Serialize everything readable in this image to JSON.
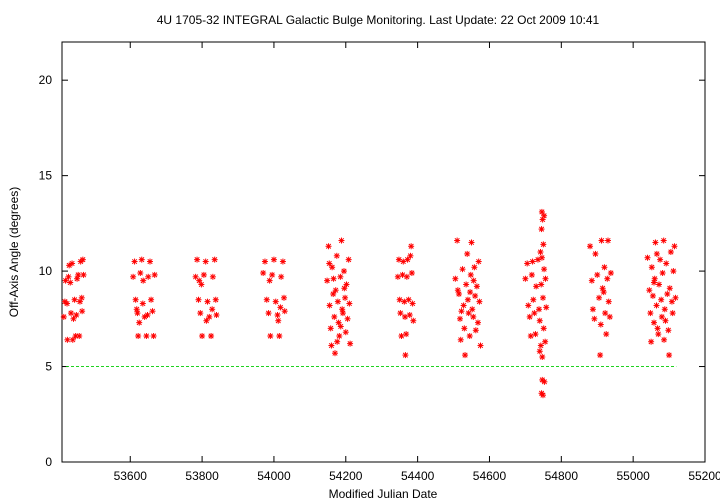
{
  "chart_data": {
    "type": "scatter",
    "title": "4U 1705-32   INTEGRAL Galactic Bulge Monitoring.  Last Update: 22 Oct 2009 10:41",
    "xlabel": "Modified Julian Date",
    "ylabel": "Off-Axis Angle (degrees)",
    "xlim": [
      53410,
      55200
    ],
    "ylim": [
      0,
      22
    ],
    "xticks": [
      53600,
      53800,
      54000,
      54200,
      54400,
      54600,
      54800,
      55000,
      55200
    ],
    "yticks": [
      0,
      5,
      10,
      15,
      20
    ],
    "grid": false,
    "reference_line": {
      "y": 5,
      "color": "#00cc00",
      "style": "dashed"
    },
    "marker": {
      "symbol": "asterisk",
      "color": "#ff0000"
    },
    "series": [
      {
        "points": [
          [
            53415,
            7.6
          ],
          [
            53420,
            9.5
          ],
          [
            53425,
            6.4
          ],
          [
            53418,
            8.4
          ],
          [
            53430,
            10.3
          ],
          [
            53435,
            7.8
          ],
          [
            53428,
            9.7
          ],
          [
            53440,
            6.4
          ],
          [
            53445,
            8.5
          ],
          [
            53438,
            10.4
          ],
          [
            53450,
            7.7
          ],
          [
            53455,
            9.8
          ],
          [
            53448,
            6.6
          ],
          [
            53460,
            8.4
          ],
          [
            53462,
            10.5
          ],
          [
            53466,
            7.9
          ],
          [
            53470,
            9.8
          ],
          [
            53458,
            6.6
          ],
          [
            53468,
            10.6
          ],
          [
            53442,
            7.5
          ],
          [
            53452,
            9.6
          ],
          [
            53424,
            8.3
          ],
          [
            53433,
            9.4
          ],
          [
            53465,
            8.6
          ],
          [
            53608,
            9.7
          ],
          [
            53612,
            10.5
          ],
          [
            53615,
            8.5
          ],
          [
            53620,
            7.8
          ],
          [
            53622,
            6.6
          ],
          [
            53628,
            9.9
          ],
          [
            53632,
            10.6
          ],
          [
            53635,
            8.3
          ],
          [
            53640,
            7.6
          ],
          [
            53645,
            6.6
          ],
          [
            53650,
            9.7
          ],
          [
            53655,
            10.5
          ],
          [
            53658,
            8.5
          ],
          [
            53662,
            7.9
          ],
          [
            53665,
            6.6
          ],
          [
            53668,
            9.8
          ],
          [
            53618,
            8.0
          ],
          [
            53648,
            7.7
          ],
          [
            53636,
            9.5
          ],
          [
            53625,
            7.3
          ],
          [
            53782,
            9.7
          ],
          [
            53786,
            10.6
          ],
          [
            53790,
            8.5
          ],
          [
            53795,
            7.8
          ],
          [
            53800,
            6.6
          ],
          [
            53805,
            9.8
          ],
          [
            53810,
            10.5
          ],
          [
            53815,
            8.4
          ],
          [
            53820,
            7.6
          ],
          [
            53825,
            6.6
          ],
          [
            53830,
            9.7
          ],
          [
            53835,
            10.6
          ],
          [
            53838,
            8.5
          ],
          [
            53840,
            7.7
          ],
          [
            53798,
            9.3
          ],
          [
            53812,
            7.4
          ],
          [
            53828,
            8.0
          ],
          [
            53792,
            9.5
          ],
          [
            53970,
            9.9
          ],
          [
            53975,
            10.5
          ],
          [
            53980,
            8.5
          ],
          [
            53985,
            7.8
          ],
          [
            53990,
            6.6
          ],
          [
            53995,
            9.8
          ],
          [
            54000,
            10.6
          ],
          [
            54005,
            8.4
          ],
          [
            54010,
            7.7
          ],
          [
            54015,
            6.6
          ],
          [
            54020,
            9.7
          ],
          [
            54025,
            10.5
          ],
          [
            54028,
            8.6
          ],
          [
            54030,
            7.9
          ],
          [
            53988,
            9.5
          ],
          [
            54012,
            7.4
          ],
          [
            54018,
            8.1
          ],
          [
            54148,
            9.5
          ],
          [
            54152,
            11.3
          ],
          [
            54155,
            8.2
          ],
          [
            54158,
            7.0
          ],
          [
            54160,
            6.1
          ],
          [
            54162,
            10.2
          ],
          [
            54165,
            8.8
          ],
          [
            54168,
            7.6
          ],
          [
            54170,
            5.7
          ],
          [
            54172,
            9.0
          ],
          [
            54175,
            10.8
          ],
          [
            54178,
            8.4
          ],
          [
            54180,
            7.3
          ],
          [
            54182,
            6.6
          ],
          [
            54185,
            9.7
          ],
          [
            54188,
            11.6
          ],
          [
            54190,
            8.0
          ],
          [
            54192,
            7.8
          ],
          [
            54195,
            10.0
          ],
          [
            54198,
            8.6
          ],
          [
            54200,
            6.8
          ],
          [
            54202,
            9.3
          ],
          [
            54205,
            7.5
          ],
          [
            54208,
            10.6
          ],
          [
            54210,
            8.3
          ],
          [
            54212,
            6.2
          ],
          [
            54154,
            10.4
          ],
          [
            54166,
            9.6
          ],
          [
            54176,
            6.3
          ],
          [
            54186,
            7.1
          ],
          [
            54196,
            9.1
          ],
          [
            54345,
            9.7
          ],
          [
            54348,
            10.6
          ],
          [
            54350,
            8.5
          ],
          [
            54352,
            7.8
          ],
          [
            54355,
            6.6
          ],
          [
            54358,
            9.8
          ],
          [
            54360,
            10.5
          ],
          [
            54363,
            8.4
          ],
          [
            54365,
            7.6
          ],
          [
            54368,
            6.7
          ],
          [
            54370,
            9.7
          ],
          [
            54372,
            10.6
          ],
          [
            54366,
            5.6
          ],
          [
            54375,
            8.5
          ],
          [
            54378,
            7.7
          ],
          [
            54380,
            10.8
          ],
          [
            54382,
            11.3
          ],
          [
            54384,
            9.9
          ],
          [
            54386,
            8.3
          ],
          [
            54388,
            7.4
          ],
          [
            54505,
            9.6
          ],
          [
            54510,
            11.6
          ],
          [
            54515,
            8.8
          ],
          [
            54518,
            7.5
          ],
          [
            54520,
            6.4
          ],
          [
            54525,
            10.1
          ],
          [
            54528,
            8.2
          ],
          [
            54530,
            7.0
          ],
          [
            54532,
            5.6
          ],
          [
            54535,
            9.3
          ],
          [
            54538,
            10.9
          ],
          [
            54540,
            8.5
          ],
          [
            54542,
            7.8
          ],
          [
            54545,
            6.6
          ],
          [
            54548,
            9.8
          ],
          [
            54550,
            11.5
          ],
          [
            54552,
            8.0
          ],
          [
            54555,
            7.6
          ],
          [
            54558,
            10.2
          ],
          [
            54560,
            8.7
          ],
          [
            54562,
            6.9
          ],
          [
            54565,
            9.2
          ],
          [
            54568,
            7.3
          ],
          [
            54570,
            10.5
          ],
          [
            54572,
            8.4
          ],
          [
            54575,
            6.1
          ],
          [
            54512,
            9.0
          ],
          [
            54522,
            7.9
          ],
          [
            54546,
            8.9
          ],
          [
            54556,
            9.5
          ],
          [
            54700,
            9.6
          ],
          [
            54705,
            10.4
          ],
          [
            54708,
            8.2
          ],
          [
            54712,
            7.6
          ],
          [
            54715,
            6.6
          ],
          [
            54718,
            9.8
          ],
          [
            54720,
            10.5
          ],
          [
            54722,
            8.5
          ],
          [
            54725,
            7.8
          ],
          [
            54728,
            6.7
          ],
          [
            54730,
            9.2
          ],
          [
            54735,
            10.6
          ],
          [
            54738,
            8.0
          ],
          [
            54740,
            7.4
          ],
          [
            54742,
            11.0
          ],
          [
            54745,
            12.2
          ],
          [
            54746,
            13.1
          ],
          [
            54748,
            12.7
          ],
          [
            54750,
            11.4
          ],
          [
            54752,
            10.1
          ],
          [
            54744,
            9.3
          ],
          [
            54749,
            8.6
          ],
          [
            54751,
            7.0
          ],
          [
            54743,
            6.1
          ],
          [
            54747,
            5.5
          ],
          [
            54753,
            4.2
          ],
          [
            54745,
            3.6
          ],
          [
            54749,
            3.5
          ],
          [
            54756,
            9.6
          ],
          [
            54758,
            8.1
          ],
          [
            54755,
            6.3
          ],
          [
            54747,
            4.3
          ],
          [
            54740,
            5.8
          ],
          [
            54746,
            10.7
          ],
          [
            54752,
            12.9
          ],
          [
            54880,
            11.3
          ],
          [
            54885,
            9.5
          ],
          [
            54888,
            8.0
          ],
          [
            54892,
            7.5
          ],
          [
            54895,
            10.9
          ],
          [
            54900,
            9.8
          ],
          [
            54905,
            8.6
          ],
          [
            54908,
            5.6
          ],
          [
            54910,
            7.2
          ],
          [
            54912,
            11.6
          ],
          [
            54915,
            9.1
          ],
          [
            54918,
            8.9
          ],
          [
            54920,
            10.2
          ],
          [
            54922,
            7.8
          ],
          [
            54925,
            6.7
          ],
          [
            54928,
            9.6
          ],
          [
            54930,
            11.6
          ],
          [
            54932,
            8.4
          ],
          [
            54935,
            7.6
          ],
          [
            54938,
            9.9
          ],
          [
            55040,
            10.7
          ],
          [
            55045,
            9.0
          ],
          [
            55048,
            7.8
          ],
          [
            55050,
            6.3
          ],
          [
            55052,
            10.2
          ],
          [
            55055,
            8.7
          ],
          [
            55058,
            7.3
          ],
          [
            55060,
            9.6
          ],
          [
            55062,
            11.5
          ],
          [
            55065,
            8.2
          ],
          [
            55068,
            7.0
          ],
          [
            55070,
            6.7
          ],
          [
            55072,
            9.3
          ],
          [
            55075,
            10.6
          ],
          [
            55078,
            8.5
          ],
          [
            55080,
            7.6
          ],
          [
            55082,
            9.9
          ],
          [
            55085,
            11.6
          ],
          [
            55088,
            8.0
          ],
          [
            55090,
            7.4
          ],
          [
            55092,
            10.4
          ],
          [
            55095,
            8.8
          ],
          [
            55098,
            6.9
          ],
          [
            55100,
            5.6
          ],
          [
            55102,
            9.1
          ],
          [
            55105,
            11.0
          ],
          [
            55108,
            8.4
          ],
          [
            55110,
            7.8
          ],
          [
            55112,
            10.0
          ],
          [
            55115,
            11.3
          ],
          [
            55118,
            8.6
          ],
          [
            55058,
            9.4
          ],
          [
            55066,
            10.9
          ],
          [
            55086,
            6.4
          ]
        ]
      }
    ]
  }
}
